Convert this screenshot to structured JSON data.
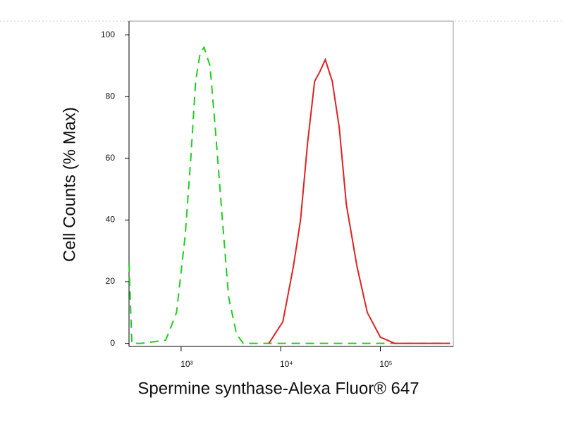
{
  "chart_data": {
    "type": "line",
    "x_label": "Spermine synthase-Alexa Fluor® 647",
    "y_label": "Cell Counts (% Max)",
    "xscale": "log",
    "xlim": [
      300,
      540000
    ],
    "ylim": [
      -1,
      104.5
    ],
    "xticks": [
      {
        "value": 1000,
        "label": "10³"
      },
      {
        "value": 10000,
        "label": "10⁴"
      },
      {
        "value": 100000,
        "label": "10⁵"
      }
    ],
    "yticks": [
      0,
      20,
      40,
      60,
      80,
      100
    ],
    "series": [
      {
        "color": "#22cc22",
        "dashed": true,
        "x": [
          300,
          320,
          400,
          700,
          900,
          1100,
          1250,
          1400,
          1550,
          1700,
          1950,
          2200,
          2600,
          3000,
          3600,
          4200,
          10000,
          100000,
          500000
        ],
        "values": [
          26,
          0,
          0,
          1,
          10,
          35,
          60,
          85,
          94,
          96,
          90,
          70,
          40,
          15,
          3,
          0,
          0,
          0,
          0
        ]
      },
      {
        "color": "#dd2222",
        "dashed": false,
        "x": [
          7600,
          10500,
          13400,
          15800,
          18600,
          21900,
          24600,
          28000,
          32900,
          38700,
          45600,
          58200,
          74000,
          100000,
          139000,
          500000
        ],
        "values": [
          0,
          7,
          25,
          40,
          65,
          85,
          88,
          92,
          85,
          70,
          45,
          25,
          10,
          2,
          0,
          0
        ]
      }
    ]
  }
}
